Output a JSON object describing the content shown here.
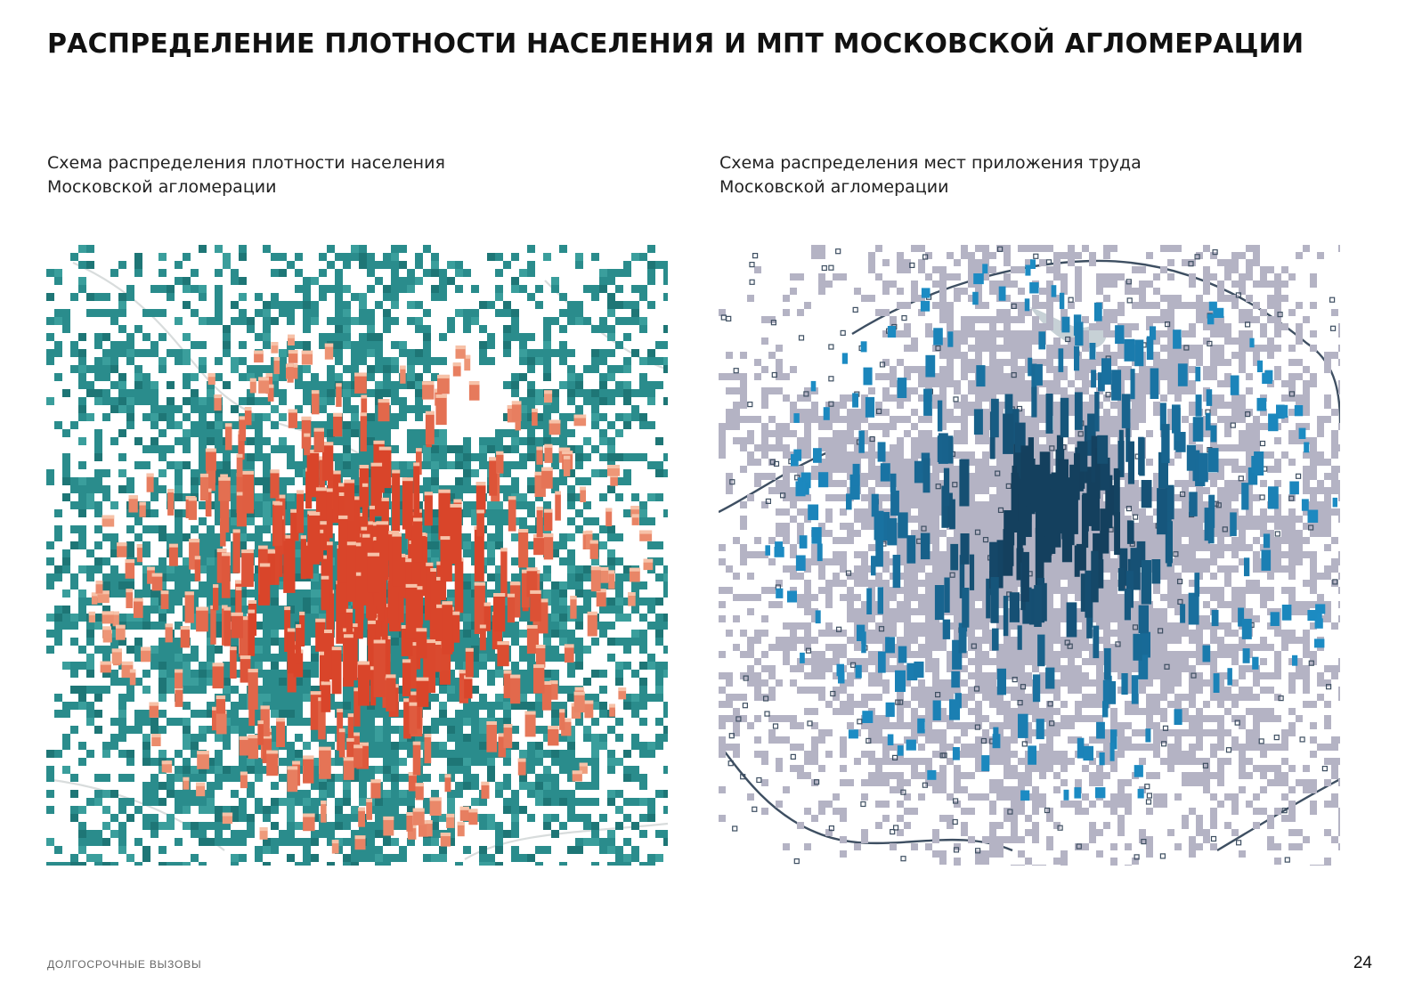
{
  "page": {
    "title": "РАСПРЕДЕЛЕНИЕ ПЛОТНОСТИ НАСЕЛЕНИЯ И МПТ МОСКОВСКОЙ АГЛОМЕРАЦИИ",
    "footer_left": "ДОЛГОСРОЧНЫЕ ВЫЗОВЫ",
    "page_number": "24"
  },
  "maps": [
    {
      "caption_line1": "Схема распределения плотности населения",
      "caption_line2": "Московской агломерации",
      "base_color": "#2a8c8c",
      "peak_color": "#d9452a",
      "light_peak_color": "#f0a080"
    },
    {
      "caption_line1": "Схема распределения мест приложения труда",
      "caption_line2": "Московской агломерации",
      "base_color": "#b4b3c4",
      "outline_color": "#3e4f62",
      "peak_color": "#1c8cc4",
      "dark_peak_color": "#14405e",
      "water_color": "#b9c6cc"
    }
  ]
}
